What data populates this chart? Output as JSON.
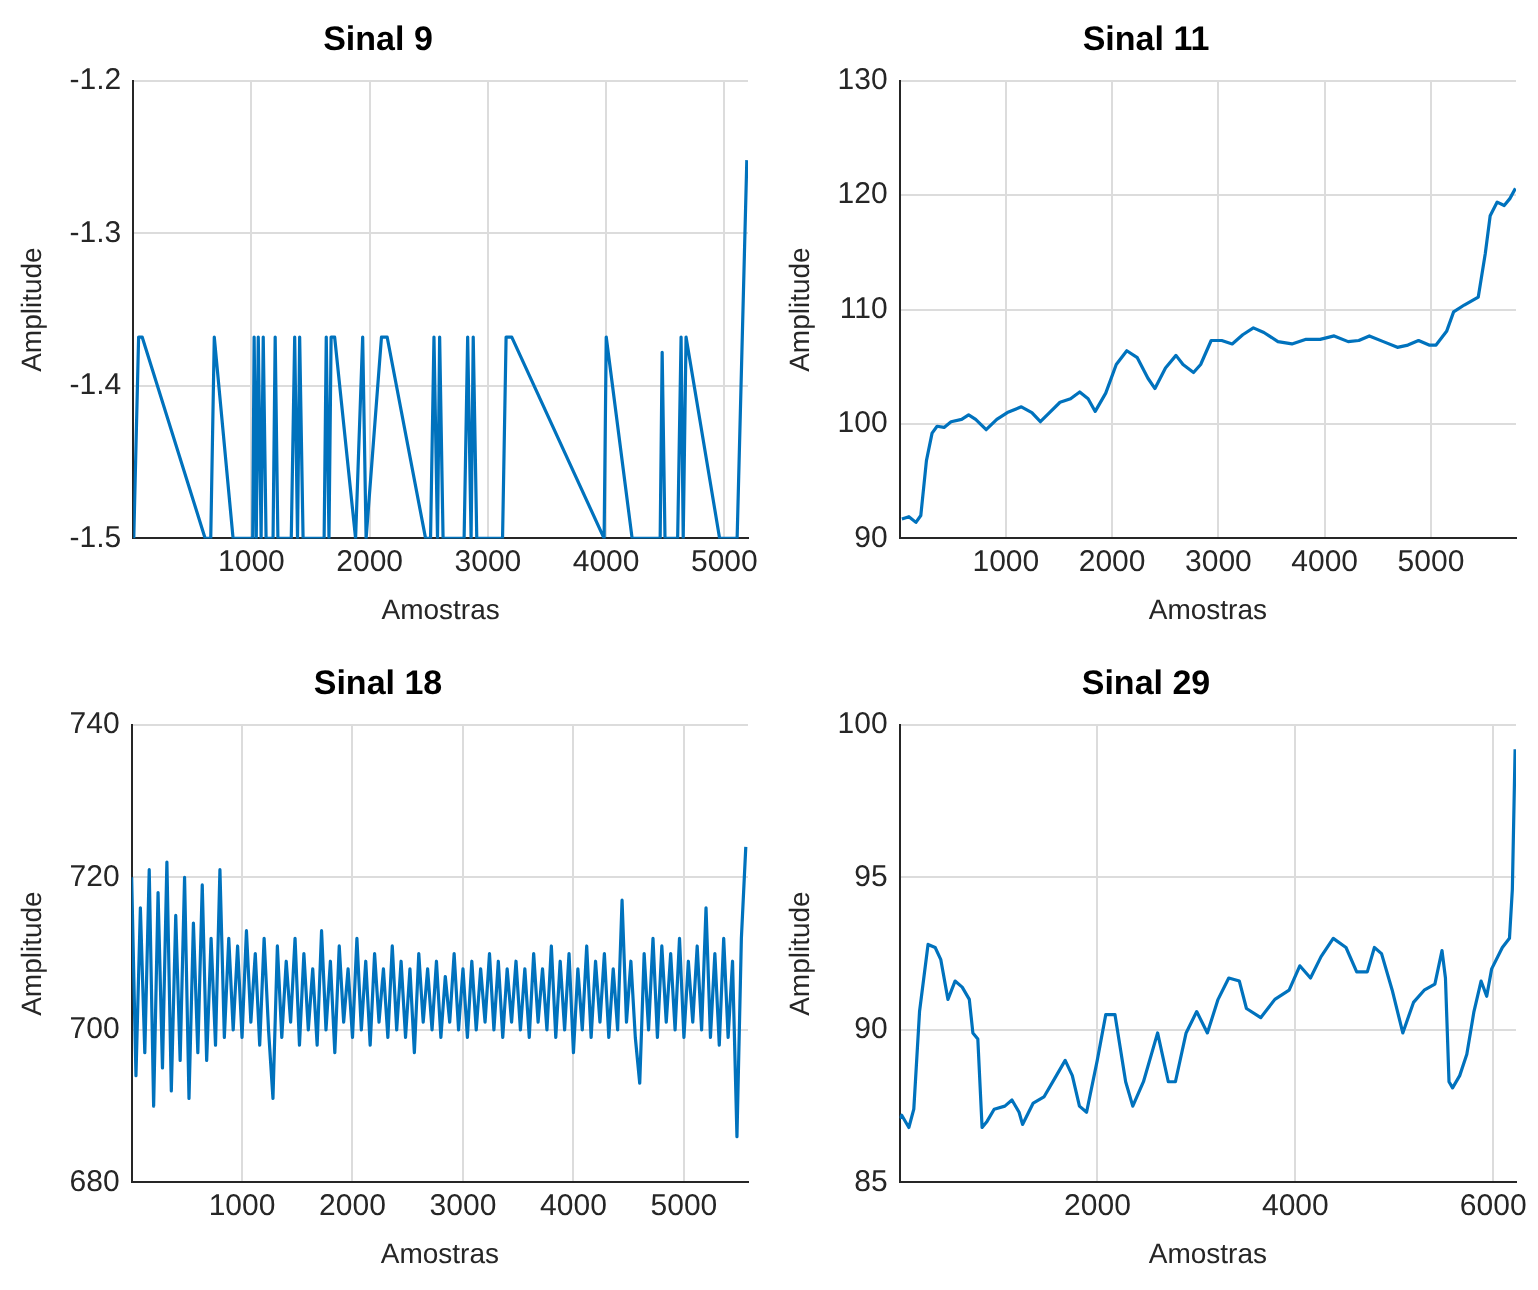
{
  "chart_data": [
    {
      "type": "line",
      "title": "Sinal 9",
      "xlabel": "Amostras",
      "ylabel": "Amplitude",
      "xlim": [
        1,
        5200
      ],
      "ylim": [
        -1.5,
        -1.2
      ],
      "xticks": [
        1000,
        2000,
        3000,
        4000,
        5000
      ],
      "yticks": [
        -1.5,
        -1.4,
        -1.3,
        -1.2
      ],
      "grid": true,
      "x": [
        5,
        46,
        76,
        609,
        656,
        686,
        845,
        1011,
        1023,
        1041,
        1058,
        1082,
        1100,
        1124,
        1183,
        1201,
        1224,
        1337,
        1366,
        1390,
        1408,
        1437,
        1615,
        1633,
        1656,
        1674,
        1704,
        1881,
        1941,
        1970,
        2100,
        2148,
        2473,
        2515,
        2544,
        2574,
        2592,
        2621,
        2799,
        2829,
        2858,
        2876,
        2906,
        3124,
        3154,
        3202,
        3983,
        4001,
        4220,
        4457,
        4474,
        4498,
        4605,
        4634,
        4652,
        4676,
        4960,
        5108,
        5190
      ],
      "series": [
        {
          "color": "#0072bd",
          "values": [
            -1.5,
            -1.368,
            -1.368,
            -1.5,
            -1.5,
            -1.368,
            -1.5,
            -1.5,
            -1.368,
            -1.5,
            -1.368,
            -1.5,
            -1.368,
            -1.5,
            -1.5,
            -1.368,
            -1.5,
            -1.5,
            -1.368,
            -1.5,
            -1.368,
            -1.5,
            -1.5,
            -1.368,
            -1.5,
            -1.368,
            -1.368,
            -1.5,
            -1.368,
            -1.5,
            -1.368,
            -1.368,
            -1.5,
            -1.5,
            -1.368,
            -1.5,
            -1.368,
            -1.5,
            -1.5,
            -1.368,
            -1.5,
            -1.368,
            -1.5,
            -1.5,
            -1.368,
            -1.368,
            -1.5,
            -1.368,
            -1.5,
            -1.5,
            -1.378,
            -1.5,
            -1.5,
            -1.368,
            -1.5,
            -1.368,
            -1.5,
            -1.5,
            -1.252
          ]
        }
      ]
    },
    {
      "type": "line",
      "title": "Sinal 11",
      "xlabel": "Amostras",
      "ylabel": "Amplitude",
      "xlim": [
        1,
        5800
      ],
      "ylim": [
        90,
        130
      ],
      "xticks": [
        1000,
        2000,
        3000,
        4000,
        5000
      ],
      "yticks": [
        90,
        100,
        110,
        120,
        130
      ],
      "grid": true,
      "x": [
        22,
        88,
        154,
        200,
        253,
        306,
        353,
        419,
        485,
        584,
        650,
        716,
        815,
        915,
        1014,
        1146,
        1245,
        1325,
        1411,
        1510,
        1609,
        1695,
        1774,
        1841,
        1940,
        2039,
        2138,
        2237,
        2337,
        2403,
        2502,
        2601,
        2667,
        2766,
        2833,
        2932,
        3031,
        3130,
        3229,
        3329,
        3428,
        3560,
        3692,
        3825,
        3957,
        4089,
        4221,
        4321,
        4420,
        4552,
        4684,
        4783,
        4883,
        4982,
        5048,
        5147,
        5213,
        5313,
        5445,
        5511,
        5557,
        5623,
        5689,
        5742,
        5795
      ],
      "series": [
        {
          "color": "#0072bd",
          "values": [
            91.7,
            91.9,
            91.4,
            92.0,
            96.8,
            99.2,
            99.8,
            99.7,
            100.2,
            100.4,
            100.8,
            100.4,
            99.5,
            100.4,
            101.0,
            101.5,
            101.0,
            100.2,
            101.0,
            101.9,
            102.2,
            102.8,
            102.2,
            101.1,
            102.7,
            105.2,
            106.4,
            105.8,
            104.0,
            103.1,
            104.9,
            106.0,
            105.2,
            104.5,
            105.2,
            107.3,
            107.3,
            107.0,
            107.8,
            108.4,
            108.0,
            107.2,
            107.0,
            107.4,
            107.4,
            107.7,
            107.2,
            107.3,
            107.7,
            107.2,
            106.7,
            106.9,
            107.3,
            106.9,
            106.9,
            108.1,
            109.8,
            110.4,
            111.1,
            114.9,
            118.2,
            119.4,
            119.1,
            119.7,
            120.6
          ]
        }
      ]
    },
    {
      "type": "line",
      "title": "Sinal 18",
      "xlabel": "Amostras",
      "ylabel": "Amplitude",
      "xlim": [
        1,
        5580
      ],
      "ylim": [
        680,
        740
      ],
      "xticks": [
        1000,
        2000,
        3000,
        4000,
        5000
      ],
      "yticks": [
        680,
        700,
        720,
        740
      ],
      "grid": true,
      "x": [
        1,
        40,
        80,
        120,
        160,
        200,
        240,
        280,
        320,
        360,
        400,
        440,
        480,
        520,
        560,
        600,
        640,
        680,
        720,
        760,
        800,
        840,
        880,
        920,
        960,
        1000,
        1040,
        1080,
        1120,
        1160,
        1200,
        1240,
        1280,
        1320,
        1360,
        1400,
        1440,
        1480,
        1520,
        1560,
        1600,
        1640,
        1680,
        1720,
        1760,
        1800,
        1840,
        1880,
        1920,
        1960,
        2000,
        2040,
        2080,
        2120,
        2160,
        2200,
        2240,
        2280,
        2320,
        2360,
        2400,
        2440,
        2480,
        2520,
        2560,
        2600,
        2640,
        2680,
        2720,
        2760,
        2800,
        2840,
        2880,
        2920,
        2960,
        3000,
        3040,
        3080,
        3120,
        3160,
        3200,
        3240,
        3280,
        3320,
        3360,
        3400,
        3440,
        3480,
        3520,
        3560,
        3600,
        3640,
        3680,
        3720,
        3760,
        3800,
        3840,
        3880,
        3920,
        3960,
        4000,
        4040,
        4080,
        4120,
        4160,
        4200,
        4240,
        4280,
        4320,
        4360,
        4400,
        4440,
        4480,
        4520,
        4560,
        4600,
        4640,
        4680,
        4720,
        4760,
        4800,
        4840,
        4880,
        4920,
        4960,
        5000,
        5040,
        5080,
        5120,
        5160,
        5200,
        5240,
        5280,
        5320,
        5360,
        5400,
        5440,
        5480,
        5520,
        5560
      ],
      "series": [
        {
          "color": "#0072bd",
          "values": [
            720,
            694,
            716,
            697,
            721,
            690,
            718,
            695,
            722,
            692,
            715,
            696,
            720,
            691,
            714,
            697,
            719,
            696,
            712,
            698,
            721,
            699,
            712,
            700,
            711,
            699,
            713,
            701,
            710,
            698,
            712,
            700,
            691,
            711,
            699,
            709,
            701,
            712,
            698,
            710,
            700,
            708,
            698,
            713,
            700,
            709,
            697,
            711,
            701,
            708,
            699,
            712,
            700,
            709,
            698,
            710,
            701,
            708,
            699,
            711,
            700,
            709,
            699,
            708,
            697,
            710,
            701,
            708,
            700,
            709,
            699,
            707,
            701,
            710,
            700,
            708,
            699,
            709,
            700,
            708,
            701,
            710,
            700,
            709,
            699,
            708,
            701,
            709,
            700,
            708,
            699,
            710,
            701,
            708,
            700,
            711,
            699,
            709,
            700,
            710,
            697,
            708,
            700,
            711,
            699,
            709,
            701,
            710,
            699,
            708,
            700,
            717,
            701,
            709,
            699,
            693,
            710,
            700,
            712,
            699,
            711,
            701,
            710,
            700,
            712,
            699,
            709,
            701,
            711,
            700,
            716,
            699,
            710,
            698,
            712,
            699,
            709,
            686,
            712,
            724
          ]
        }
      ]
    },
    {
      "type": "line",
      "title": "Sinal 29",
      "xlabel": "Amostras",
      "ylabel": "Amplitude",
      "xlim": [
        1,
        6230
      ],
      "ylim": [
        85,
        100
      ],
      "xticks": [
        2000,
        4000,
        6000
      ],
      "yticks": [
        85,
        90,
        95,
        100
      ],
      "grid": true,
      "x": [
        1,
        22,
        94,
        144,
        202,
        288,
        360,
        417,
        489,
        561,
        633,
        705,
        741,
        791,
        834,
        884,
        956,
        1064,
        1136,
        1208,
        1243,
        1351,
        1459,
        1567,
        1674,
        1746,
        1818,
        1890,
        1998,
        2084,
        2177,
        2285,
        2357,
        2465,
        2608,
        2716,
        2788,
        2896,
        3003,
        3111,
        3219,
        3327,
        3434,
        3506,
        3650,
        3793,
        3937,
        4045,
        4153,
        4260,
        4383,
        4512,
        4620,
        4727,
        4799,
        4871,
        4979,
        5086,
        5194,
        5302,
        5410,
        5482,
        5517,
        5553,
        5589,
        5661,
        5733,
        5805,
        5877,
        5934,
        5984,
        6092,
        6164,
        6193,
        6221
      ],
      "series": [
        {
          "color": "#0072bd",
          "values": [
            87.1,
            87.2,
            86.8,
            87.4,
            90.6,
            92.8,
            92.7,
            92.3,
            91.0,
            91.6,
            91.4,
            91.0,
            89.9,
            89.7,
            86.8,
            87.0,
            87.4,
            87.5,
            87.7,
            87.3,
            86.9,
            87.6,
            87.8,
            88.4,
            89.0,
            88.5,
            87.5,
            87.3,
            89.0,
            90.5,
            90.5,
            88.3,
            87.5,
            88.3,
            89.9,
            88.3,
            88.3,
            89.9,
            90.6,
            89.9,
            91.0,
            91.7,
            91.6,
            90.7,
            90.4,
            91.0,
            91.3,
            92.1,
            91.7,
            92.4,
            93.0,
            92.7,
            91.9,
            91.9,
            92.7,
            92.5,
            91.3,
            89.9,
            90.9,
            91.3,
            91.5,
            92.6,
            91.7,
            88.3,
            88.1,
            88.5,
            89.2,
            90.6,
            91.6,
            91.1,
            92.0,
            92.7,
            93.0,
            94.6,
            99.2
          ]
        }
      ]
    }
  ]
}
